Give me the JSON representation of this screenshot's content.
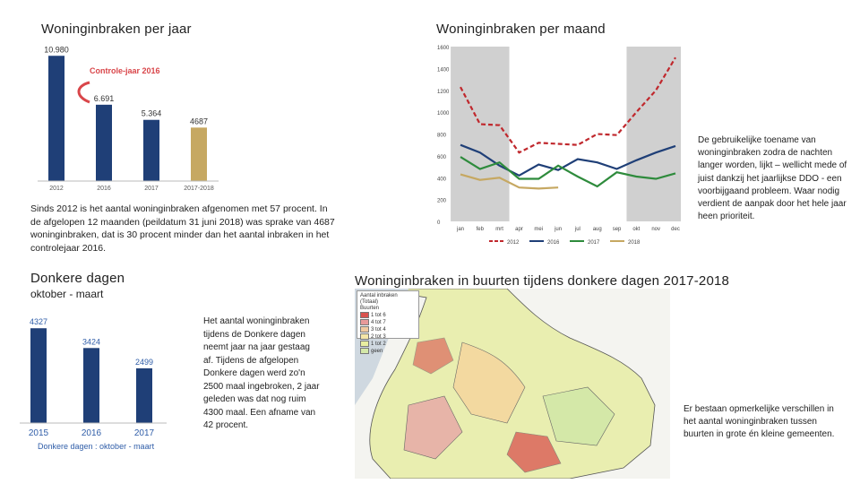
{
  "headings": {
    "per_jaar": "Woninginbraken per jaar",
    "per_maand": "Woninginbraken per maand",
    "donkere_dagen": "Donkere dagen",
    "donkere_dagen_sub": "oktober - maart",
    "buurten": "Woninginbraken in buurten tijdens donkere dagen 2017-2018"
  },
  "texts": {
    "jaar_text": "Sinds 2012 is het aantal woninginbraken afgenomen met 57 procent. In de afgelopen 12 maanden (peildatum 31 juni 2018) was sprake van 4687 woninginbraken, dat is 30 procent minder dan het aantal inbraken in het controlejaar 2016.",
    "maand_text": "De gebruikelijke toename van woninginbraken zodra de nachten langer worden, lijkt – wellicht mede of juist dankzij het jaarlijkse DDO - een voorbijgaand probleem. Waar nodig verdient de aanpak door het hele jaar heen prioriteit.",
    "donker_text": "Het aantal woninginbraken tijdens de Donkere dagen neemt jaar na jaar gestaag af. Tijdens de afgelopen Donkere dagen werd zo'n 2500 maal ingebroken, 2 jaar geleden was dat nog ruim 4300 maal. Een afname van 42 procent.",
    "map_text": "Er bestaan opmerkelijke verschillen in het aantal woninginbraken tussen buurten in grote én kleine gemeenten."
  },
  "map": {
    "legend_title": "Aantal inbraken (Totaal)",
    "legend_sub": "Buurten",
    "legend_items": [
      {
        "label": "1 tot 6",
        "color": "#d9534f"
      },
      {
        "label": "4 tot 7",
        "color": "#e89a9a"
      },
      {
        "label": "3 tot 4",
        "color": "#f0c9a0"
      },
      {
        "label": "2 tot 3",
        "color": "#f5e6a8"
      },
      {
        "label": "1 tot 2",
        "color": "#e8eea0"
      },
      {
        "label": "geen",
        "color": "#d4e8a8"
      }
    ]
  },
  "chart_data": [
    {
      "type": "bar",
      "categories": [
        "2012",
        "2016",
        "2017",
        "2017-2018"
      ],
      "values": [
        10980,
        6691,
        5364,
        4687
      ],
      "value_labels": [
        "10.980",
        "6.691",
        "5.364",
        "4687"
      ],
      "colors": [
        "#1f3f77",
        "#1f3f77",
        "#1f3f77",
        "#c6a862"
      ],
      "annotation": "Controle-jaar 2016",
      "annotation_color": "#d9464a",
      "ylim": [
        0,
        11000
      ]
    },
    {
      "type": "line",
      "categories": [
        "jan",
        "feb",
        "mrt",
        "apr",
        "mei",
        "jun",
        "jul",
        "aug",
        "sep",
        "okt",
        "nov",
        "dec"
      ],
      "yticks": [
        "0",
        "200",
        "400",
        "600",
        "800",
        "1000",
        "1200",
        "1400",
        "1600"
      ],
      "ylim": [
        0,
        1600
      ],
      "series": [
        {
          "name": "2012",
          "color": "#c0282d",
          "dash": true,
          "values": [
            1230,
            890,
            880,
            630,
            720,
            710,
            700,
            800,
            790,
            1000,
            1200,
            1500
          ]
        },
        {
          "name": "2016",
          "color": "#1f3f77",
          "dash": false,
          "values": [
            700,
            630,
            510,
            420,
            520,
            470,
            570,
            540,
            480,
            560,
            630,
            690
          ]
        },
        {
          "name": "2017",
          "color": "#2e8b3c",
          "dash": false,
          "values": [
            590,
            480,
            540,
            390,
            390,
            510,
            410,
            320,
            450,
            410,
            390,
            440
          ]
        },
        {
          "name": "2018",
          "color": "#c6a862",
          "dash": false,
          "values": [
            430,
            380,
            400,
            310,
            300,
            310,
            null,
            null,
            null,
            null,
            null,
            null
          ]
        }
      ],
      "shaded_months": [
        "jan",
        "feb",
        "mrt",
        "okt",
        "nov",
        "dec"
      ]
    },
    {
      "type": "bar",
      "categories": [
        "2015",
        "2016",
        "2017"
      ],
      "values": [
        4327,
        3424,
        2499
      ],
      "value_labels": [
        "4327",
        "3424",
        "2499"
      ],
      "colors": [
        "#1f3f77",
        "#1f3f77",
        "#1f3f77"
      ],
      "caption": "Donkere dagen : oktober - maart",
      "ylim": [
        0,
        4500
      ]
    }
  ]
}
